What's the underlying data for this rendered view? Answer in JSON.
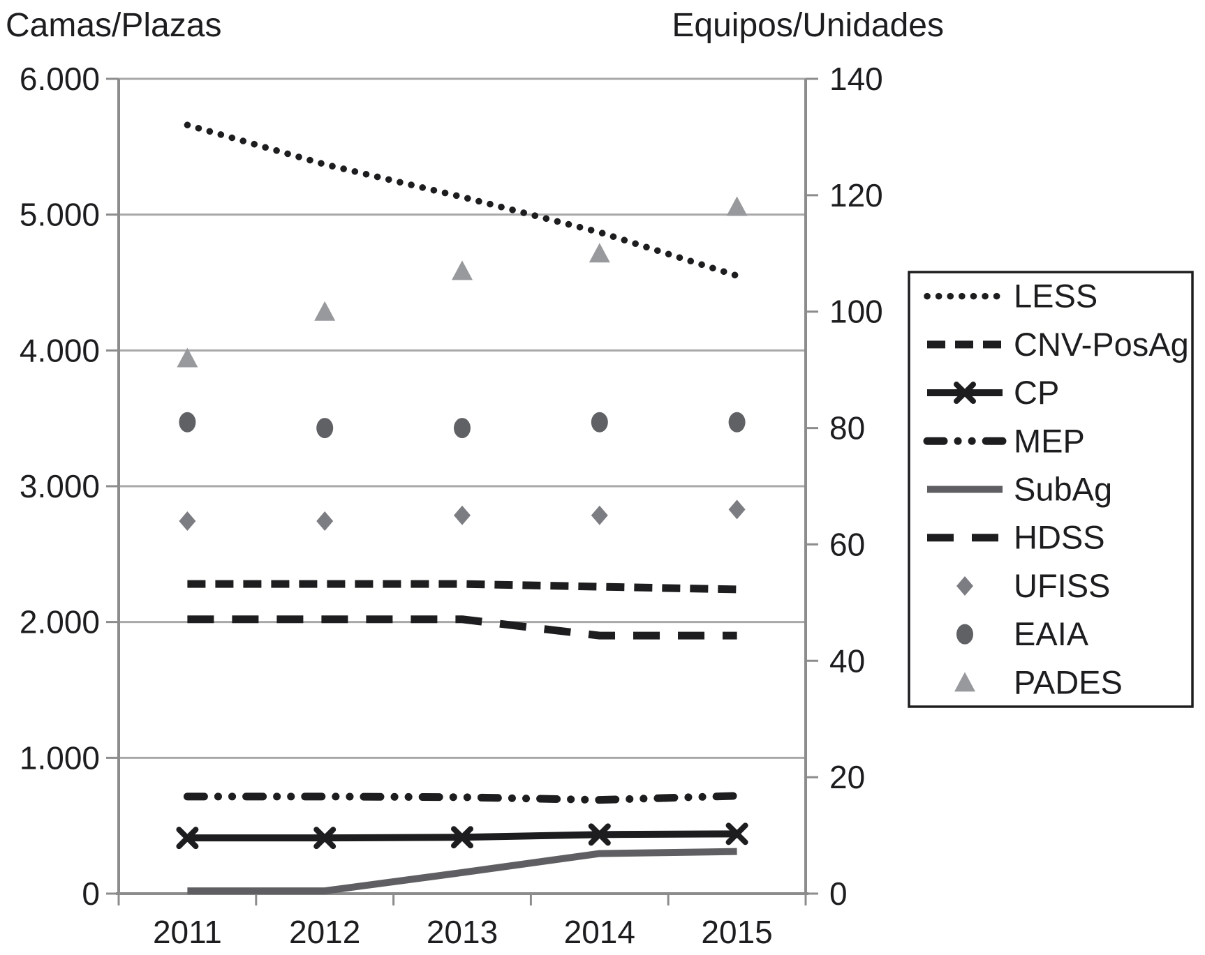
{
  "figure": {
    "background": "#ffffff",
    "text_color": "#1d1d1f",
    "grid_color": "#a8a8a8",
    "axis_color": "#8c8c8c"
  },
  "chart_data": {
    "type": "line",
    "x_categories": [
      "2011",
      "2012",
      "2013",
      "2014",
      "2015"
    ],
    "left_axis": {
      "title": "Camas/Plazas",
      "range": [
        0,
        6000
      ],
      "tick_interval": 1000,
      "tick_labels": [
        "6.000",
        "5.000",
        "4.000",
        "3.000",
        "2.000",
        "1.000",
        "0"
      ]
    },
    "right_axis": {
      "title": "Equipos/Unidades",
      "range": [
        0,
        140
      ],
      "tick_interval": 20,
      "tick_labels": [
        "140",
        "120",
        "100",
        "80",
        "60",
        "40",
        "20",
        "0"
      ]
    },
    "grid": "horizontal",
    "legend_position": "right",
    "series": [
      {
        "name": "LESS",
        "axis": "left",
        "style": "dotted",
        "color": "#1d1d1f",
        "marker": "none",
        "values": [
          5660,
          5370,
          5130,
          4870,
          4550
        ]
      },
      {
        "name": "CNV-PosAg",
        "axis": "left",
        "style": "dashed",
        "color": "#1d1d1f",
        "marker": "none",
        "values": [
          2280,
          2280,
          2280,
          2260,
          2240
        ]
      },
      {
        "name": "CP",
        "axis": "left",
        "style": "solid",
        "color": "#1d1d1f",
        "marker": "x-cross",
        "values": [
          410,
          410,
          415,
          435,
          440
        ]
      },
      {
        "name": "MEP",
        "axis": "left",
        "style": "dash-dot-dot",
        "color": "#1d1d1f",
        "marker": "none",
        "values": [
          715,
          715,
          710,
          690,
          720
        ]
      },
      {
        "name": "SubAg",
        "axis": "left",
        "style": "solid",
        "color": "#5f5f63",
        "marker": "none",
        "values": [
          20,
          20,
          155,
          295,
          310
        ]
      },
      {
        "name": "HDSS",
        "axis": "left",
        "style": "long-dash",
        "color": "#1d1d1f",
        "marker": "none",
        "values": [
          2020,
          2020,
          2020,
          1900,
          1900
        ]
      },
      {
        "name": "UFISS",
        "axis": "right",
        "style": "markers-only",
        "color": "#7c7d82",
        "marker": "diamond",
        "values": [
          64,
          64,
          65,
          65,
          66
        ]
      },
      {
        "name": "EAIA",
        "axis": "right",
        "style": "markers-only",
        "color": "#5f6164",
        "marker": "circle",
        "values": [
          81,
          80,
          80,
          81,
          81
        ]
      },
      {
        "name": "PADES",
        "axis": "right",
        "style": "markers-only",
        "color": "#97999c",
        "marker": "triangle",
        "values": [
          92,
          100,
          107,
          110,
          118
        ]
      }
    ]
  }
}
